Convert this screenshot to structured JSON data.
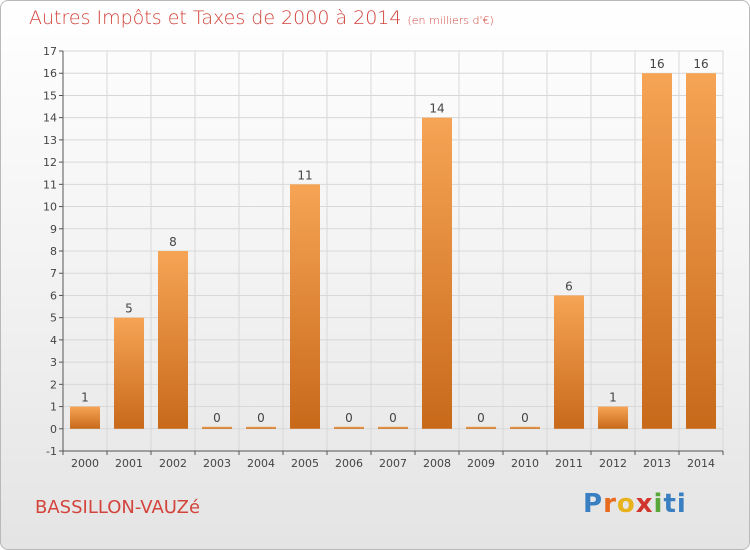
{
  "title": "Autres Impôts et Taxes de 2000 à 2014",
  "subtitle": "(en milliers d'€)",
  "place": "BASSILLON-VAUZé",
  "logo": [
    "P",
    "r",
    "o",
    "x",
    "i",
    "ti"
  ],
  "colors": {
    "title": "#d2443c",
    "bar_top": "#f6a455",
    "bar_bottom": "#c8691a",
    "grid": "#d8d8d8"
  },
  "chart_data": {
    "type": "bar",
    "categories": [
      "2000",
      "2001",
      "2002",
      "2003",
      "2004",
      "2005",
      "2006",
      "2007",
      "2008",
      "2009",
      "2010",
      "2011",
      "2012",
      "2013",
      "2014"
    ],
    "values": [
      1,
      5,
      8,
      0,
      0,
      11,
      0,
      0,
      14,
      0,
      0,
      6,
      1,
      16,
      16
    ],
    "data_labels": [
      "1",
      "5",
      "8",
      "0",
      "0",
      "11",
      "0",
      "0",
      "14",
      "0",
      "0",
      "6",
      "1",
      "16",
      "16"
    ],
    "yticks": [
      "-1",
      "0",
      "1",
      "2",
      "3",
      "4",
      "5",
      "6",
      "7",
      "8",
      "9",
      "10",
      "11",
      "12",
      "13",
      "14",
      "15",
      "16",
      "17"
    ],
    "ylim": [
      -1,
      17
    ],
    "grid": true
  }
}
